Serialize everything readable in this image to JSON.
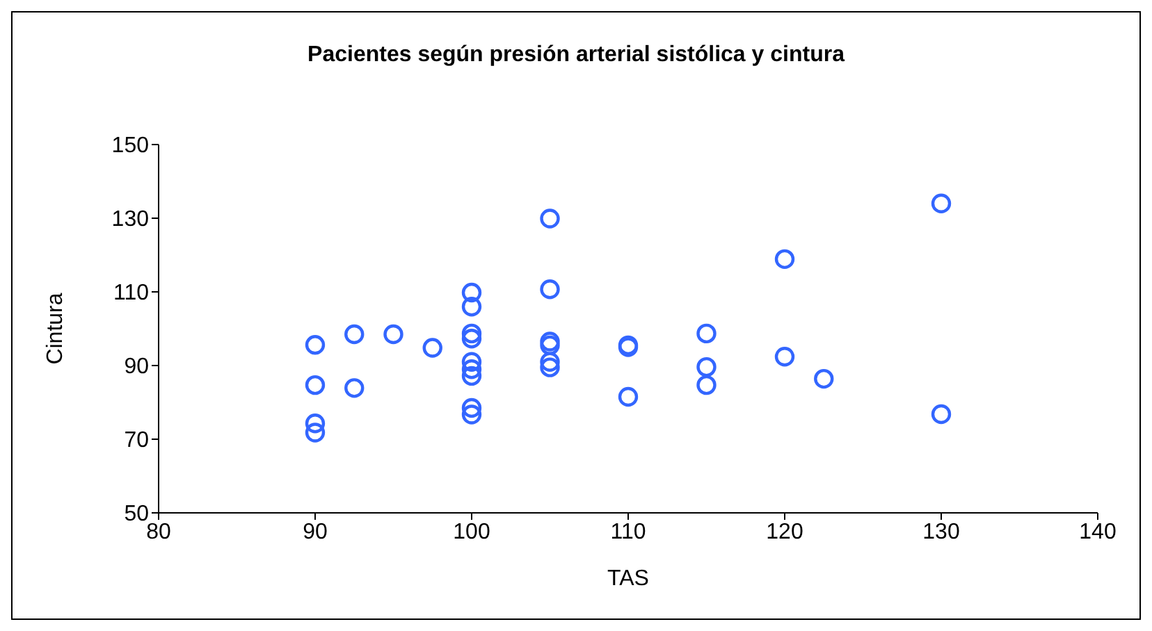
{
  "chart_data": {
    "type": "scatter",
    "title": "Pacientes según presión arterial sistólica y cintura",
    "xlabel": "TAS",
    "ylabel": "Cintura",
    "x": [
      90,
      90,
      90,
      90,
      92.5,
      92.5,
      95,
      97.5,
      100,
      100,
      100,
      100,
      100,
      100,
      100,
      100,
      100,
      105,
      105,
      105,
      105,
      105,
      105,
      110,
      110,
      110,
      115,
      115,
      115,
      120,
      120,
      122.5,
      130,
      130
    ],
    "values": [
      95.6,
      84.7,
      74.3,
      71.8,
      98.5,
      83.9,
      98.5,
      94.8,
      109.8,
      106,
      98.7,
      97.3,
      91,
      89,
      87.2,
      78.5,
      76.7,
      129.9,
      110.7,
      96.5,
      95.5,
      91,
      89.5,
      95.5,
      95,
      81.5,
      98.7,
      89.6,
      84.7,
      118.9,
      92.4,
      86.4,
      134,
      76.8
    ],
    "color": "#3366ff",
    "marker": "circle",
    "xlim": [
      80,
      140
    ],
    "xticks": [
      80,
      90,
      100,
      110,
      120,
      130,
      140
    ],
    "ylim": [
      50,
      150
    ],
    "yticks": [
      50,
      70,
      90,
      110,
      130,
      150
    ],
    "grid": false
  }
}
